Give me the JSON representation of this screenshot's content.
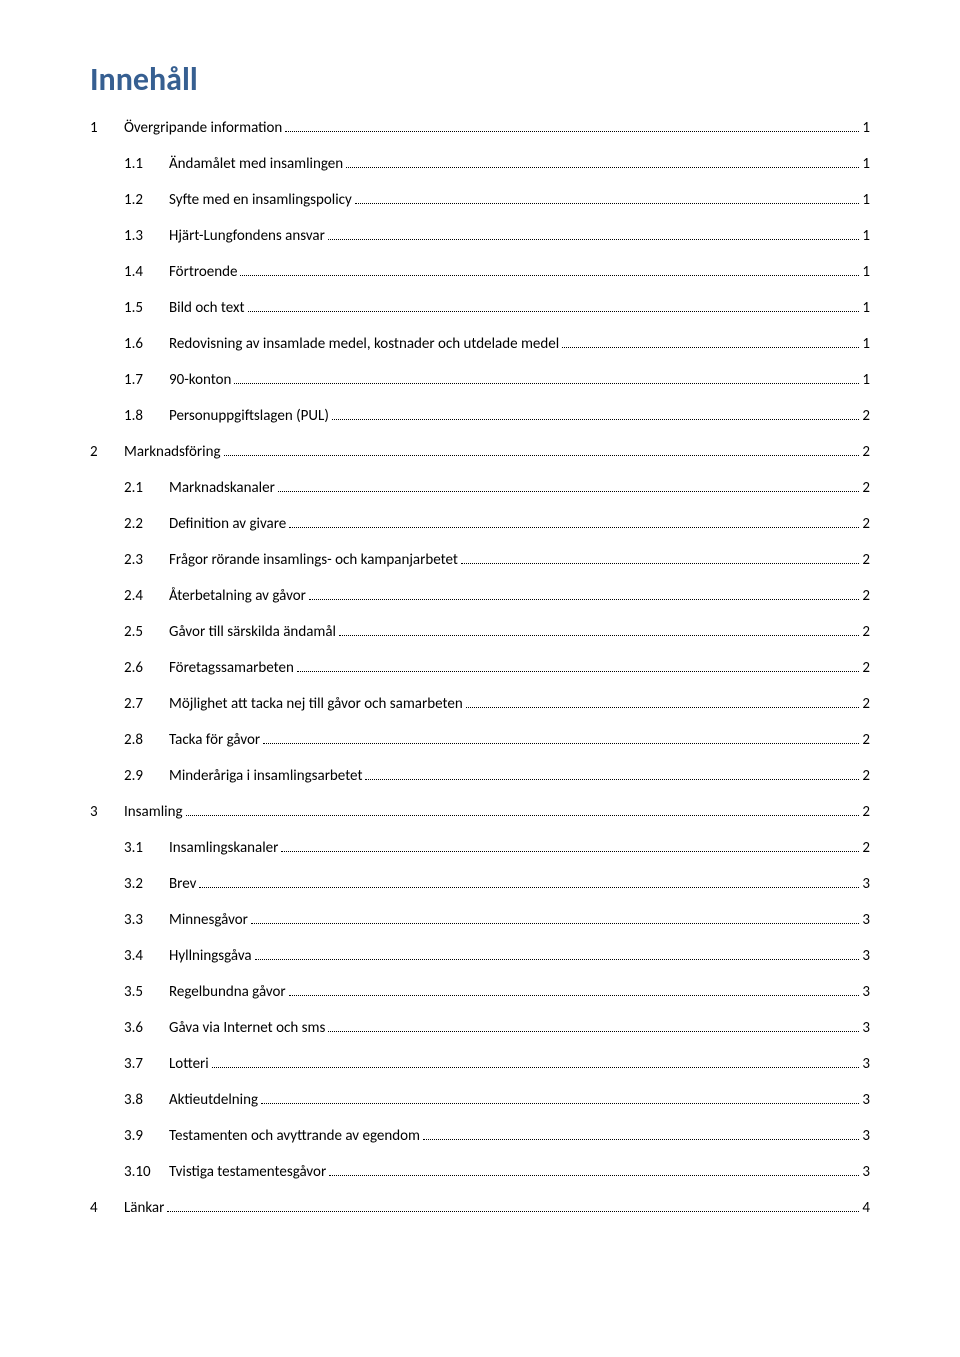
{
  "title": "Innehåll",
  "entries": [
    {
      "level": 1,
      "num": "1",
      "label": "Övergripande information",
      "page": "1"
    },
    {
      "level": 2,
      "num": "1.1",
      "label": "Ändamålet med insamlingen",
      "page": "1"
    },
    {
      "level": 2,
      "num": "1.2",
      "label": "Syfte med en insamlingspolicy",
      "page": "1"
    },
    {
      "level": 2,
      "num": "1.3",
      "label": "Hjärt-Lungfondens ansvar",
      "page": "1"
    },
    {
      "level": 2,
      "num": "1.4",
      "label": "Förtroende",
      "page": "1"
    },
    {
      "level": 2,
      "num": "1.5",
      "label": "Bild och text",
      "page": "1"
    },
    {
      "level": 2,
      "num": "1.6",
      "label": "Redovisning av insamlade medel, kostnader och utdelade medel",
      "page": "1"
    },
    {
      "level": 2,
      "num": "1.7",
      "label": "90-konton",
      "page": "1"
    },
    {
      "level": 2,
      "num": "1.8",
      "label": "Personuppgiftslagen (PUL)",
      "page": "2"
    },
    {
      "level": 1,
      "num": "2",
      "label": "Marknadsföring",
      "page": "2"
    },
    {
      "level": 2,
      "num": "2.1",
      "label": "Marknadskanaler",
      "page": "2"
    },
    {
      "level": 2,
      "num": "2.2",
      "label": "Definition av givare",
      "page": "2"
    },
    {
      "level": 2,
      "num": "2.3",
      "label": "Frågor rörande insamlings- och kampanjarbetet",
      "page": "2"
    },
    {
      "level": 2,
      "num": "2.4",
      "label": "Återbetalning av gåvor",
      "page": "2"
    },
    {
      "level": 2,
      "num": "2.5",
      "label": "Gåvor till särskilda ändamål",
      "page": "2"
    },
    {
      "level": 2,
      "num": "2.6",
      "label": "Företagssamarbeten",
      "page": "2"
    },
    {
      "level": 2,
      "num": "2.7",
      "label": "Möjlighet att tacka nej till gåvor och samarbeten",
      "page": "2"
    },
    {
      "level": 2,
      "num": "2.8",
      "label": "Tacka för gåvor",
      "page": "2"
    },
    {
      "level": 2,
      "num": "2.9",
      "label": "Minderåriga i insamlingsarbetet",
      "page": "2"
    },
    {
      "level": 1,
      "num": "3",
      "label": "Insamling",
      "page": "2"
    },
    {
      "level": 2,
      "num": "3.1",
      "label": "Insamlingskanaler",
      "page": "2"
    },
    {
      "level": 2,
      "num": "3.2",
      "label": "Brev",
      "page": "3"
    },
    {
      "level": 2,
      "num": "3.3",
      "label": "Minnesgåvor",
      "page": "3"
    },
    {
      "level": 2,
      "num": "3.4",
      "label": "Hyllningsgåva",
      "page": "3"
    },
    {
      "level": 2,
      "num": "3.5",
      "label": "Regelbundna gåvor",
      "page": "3"
    },
    {
      "level": 2,
      "num": "3.6",
      "label": "Gåva via Internet och sms",
      "page": "3"
    },
    {
      "level": 2,
      "num": "3.7",
      "label": "Lotteri",
      "page": "3"
    },
    {
      "level": 2,
      "num": "3.8",
      "label": "Aktieutdelning",
      "page": "3"
    },
    {
      "level": 2,
      "num": "3.9",
      "label": "Testamenten och avyttrande av egendom",
      "page": "3"
    },
    {
      "level": 2,
      "num": "3.10",
      "label": "Tvistiga testamentesgåvor",
      "page": "3"
    },
    {
      "level": 1,
      "num": "4",
      "label": "Länkar",
      "page": "4"
    }
  ]
}
